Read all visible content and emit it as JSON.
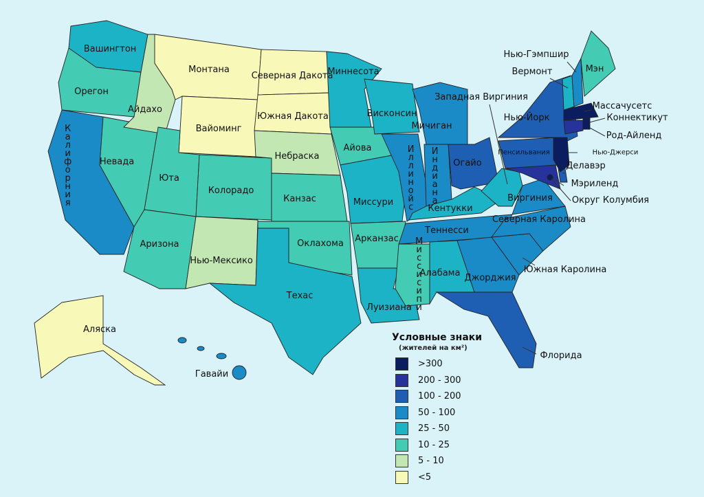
{
  "legend": {
    "title": "Условные знаки",
    "subtitle": "(жителей на км²)",
    "items": [
      {
        "label": ">300",
        "color": "#0b1d5e"
      },
      {
        "label": "200 - 300",
        "color": "#26339a"
      },
      {
        "label": "100 - 200",
        "color": "#1f5fb3"
      },
      {
        "label": "50 - 100",
        "color": "#1a8bc7"
      },
      {
        "label": "25 - 50",
        "color": "#1db3c6"
      },
      {
        "label": "10 - 25",
        "color": "#43cbb3"
      },
      {
        "label": "5 - 10",
        "color": "#c2e7b3"
      },
      {
        "label": "<5",
        "color": "#f8f8b8"
      }
    ]
  },
  "states": [
    {
      "name": "Вашингтон",
      "density": "25 - 50"
    },
    {
      "name": "Орегон",
      "density": "10 - 25"
    },
    {
      "name": "Калифорния",
      "density": "50 - 100"
    },
    {
      "name": "Невада",
      "density": "10 - 25"
    },
    {
      "name": "Айдахо",
      "density": "5 - 10"
    },
    {
      "name": "Монтана",
      "density": "<5"
    },
    {
      "name": "Вайоминг",
      "density": "<5"
    },
    {
      "name": "Юта",
      "density": "10 - 25"
    },
    {
      "name": "Аризона",
      "density": "10 - 25"
    },
    {
      "name": "Колорадо",
      "density": "10 - 25"
    },
    {
      "name": "Нью-Мексико",
      "density": "5 - 10"
    },
    {
      "name": "Северная Дакота",
      "density": "<5"
    },
    {
      "name": "Южная Дакота",
      "density": "<5"
    },
    {
      "name": "Небраска",
      "density": "5 - 10"
    },
    {
      "name": "Канзас",
      "density": "10 - 25"
    },
    {
      "name": "Оклахома",
      "density": "10 - 25"
    },
    {
      "name": "Техас",
      "density": "25 - 50"
    },
    {
      "name": "Миннесота",
      "density": "25 - 50"
    },
    {
      "name": "Айова",
      "density": "10 - 25"
    },
    {
      "name": "Миссури",
      "density": "25 - 50"
    },
    {
      "name": "Арканзас",
      "density": "10 - 25"
    },
    {
      "name": "Луизиана",
      "density": "25 - 50"
    },
    {
      "name": "Висконсин",
      "density": "25 - 50"
    },
    {
      "name": "Иллинойс",
      "density": "50 - 100"
    },
    {
      "name": "Мичиган",
      "density": "50 - 100"
    },
    {
      "name": "Индиана",
      "density": "50 - 100"
    },
    {
      "name": "Огайо",
      "density": "100 - 200"
    },
    {
      "name": "Кентукки",
      "density": "25 - 50"
    },
    {
      "name": "Теннесси",
      "density": "50 - 100"
    },
    {
      "name": "Миссисипи",
      "density": "10 - 25"
    },
    {
      "name": "Алабама",
      "density": "25 - 50"
    },
    {
      "name": "Джорджия",
      "density": "50 - 100"
    },
    {
      "name": "Флорида",
      "density": "100 - 200"
    },
    {
      "name": "Южная Каролина",
      "density": "50 - 100"
    },
    {
      "name": "Северная Каролина",
      "density": "50 - 100"
    },
    {
      "name": "Виргиния",
      "density": "50 - 100"
    },
    {
      "name": "Западная Виргиния",
      "density": "25 - 50"
    },
    {
      "name": "Пенсильвания",
      "density": "100 - 200"
    },
    {
      "name": "Нью-Йорк",
      "density": "100 - 200"
    },
    {
      "name": "Мэриленд",
      "density": "200 - 300"
    },
    {
      "name": "Делавэр",
      "density": "100 - 200"
    },
    {
      "name": "Нью-Джерси",
      "density": ">300"
    },
    {
      "name": "Вермонт",
      "density": "25 - 50"
    },
    {
      "name": "Нью-Гэмпшир",
      "density": "50 - 100"
    },
    {
      "name": "Мэн",
      "density": "10 - 25"
    },
    {
      "name": "Массачусетс",
      "density": ">300"
    },
    {
      "name": "Коннектикут",
      "density": "200 - 300"
    },
    {
      "name": "Род-Айленд",
      "density": ">300"
    },
    {
      "name": "Округ Колумбия",
      "density": ">300"
    },
    {
      "name": "Аляска",
      "density": "<5"
    },
    {
      "name": "Гавайи",
      "density": "50 - 100"
    }
  ]
}
